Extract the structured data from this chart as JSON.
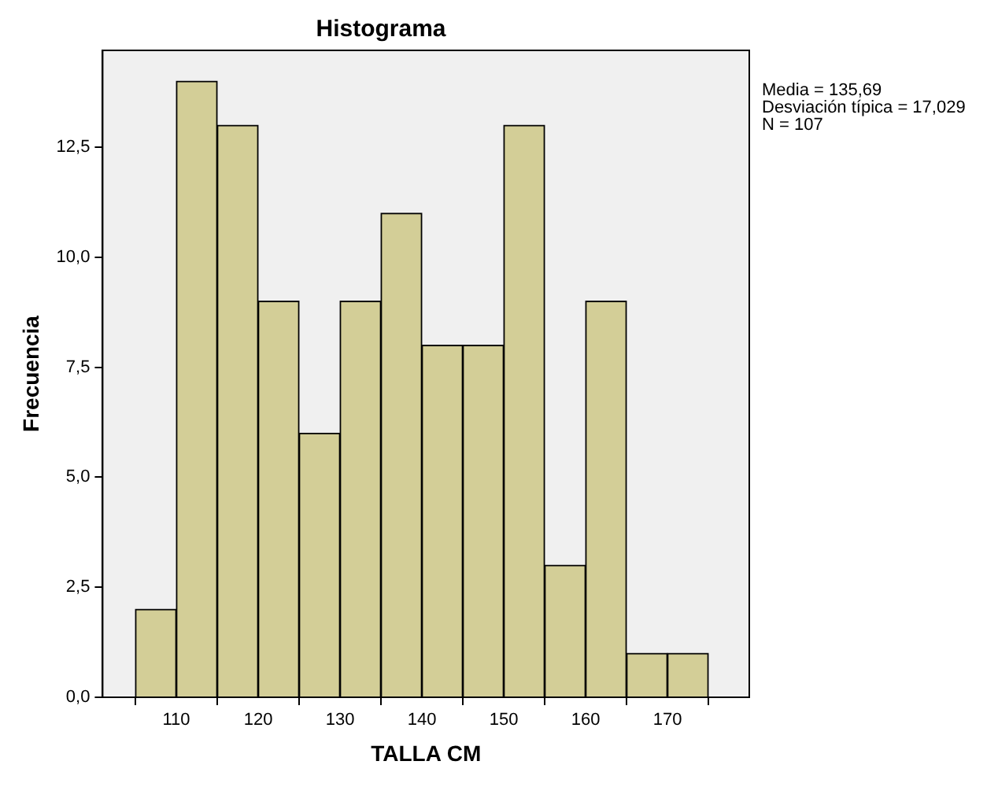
{
  "chart_data": {
    "type": "histogram",
    "title": "Histograma",
    "xlabel": "TALLA CM",
    "ylabel": "Frecuencia",
    "bins": [
      105,
      110,
      115,
      120,
      125,
      130,
      135,
      140,
      145,
      150,
      155,
      160,
      165,
      170,
      175
    ],
    "values": [
      2,
      14,
      13,
      9,
      6,
      9,
      11,
      8,
      8,
      13,
      3,
      9,
      1,
      1
    ],
    "color": "#d3ce97",
    "xlim": [
      101,
      180
    ],
    "xticks": [
      110,
      120,
      130,
      140,
      150,
      160,
      170
    ],
    "ylim": [
      0,
      14.7
    ],
    "yticks": [
      {
        "value": 0,
        "label": "0,0"
      },
      {
        "value": 2.5,
        "label": "2,5"
      },
      {
        "value": 5,
        "label": "5,0"
      },
      {
        "value": 7.5,
        "label": "7,5"
      },
      {
        "value": 10,
        "label": "10,0"
      },
      {
        "value": 12.5,
        "label": "12,5"
      }
    ],
    "grid": false,
    "legend": false,
    "annotations": [
      "Media = 135,69",
      "Desviación típica = 17,029",
      "N = 107"
    ]
  }
}
